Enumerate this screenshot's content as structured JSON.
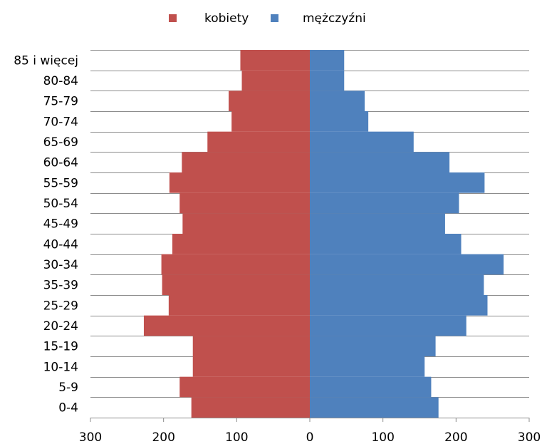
{
  "chart_data": {
    "type": "bar",
    "orientation": "horizontal-population-pyramid",
    "title": "",
    "categories": [
      "85 i więcej",
      "80-84",
      "75-79",
      "70-74",
      "65-69",
      "60-64",
      "55-59",
      "50-54",
      "45-49",
      "40-44",
      "30-34",
      "35-39",
      "25-29",
      "20-24",
      "15-19",
      "10-14",
      "5-9",
      "0-4"
    ],
    "series": [
      {
        "name": "kobiety",
        "color": "#c0504d",
        "values": [
          95,
          93,
          111,
          107,
          140,
          175,
          192,
          178,
          174,
          188,
          203,
          202,
          193,
          227,
          160,
          160,
          178,
          162
        ]
      },
      {
        "name": "mężczyźni",
        "color": "#4f81bd",
        "values": [
          47,
          47,
          75,
          80,
          142,
          191,
          239,
          204,
          185,
          207,
          265,
          238,
          243,
          214,
          172,
          157,
          166,
          176
        ]
      }
    ],
    "xlim": [
      -300,
      300
    ],
    "xticks": [
      -300,
      -200,
      -100,
      0,
      100,
      200,
      300
    ],
    "xtick_labels": [
      "300",
      "200",
      "100",
      "0",
      "100",
      "200",
      "300"
    ],
    "grid": "horizontal",
    "legend": "top-center"
  }
}
